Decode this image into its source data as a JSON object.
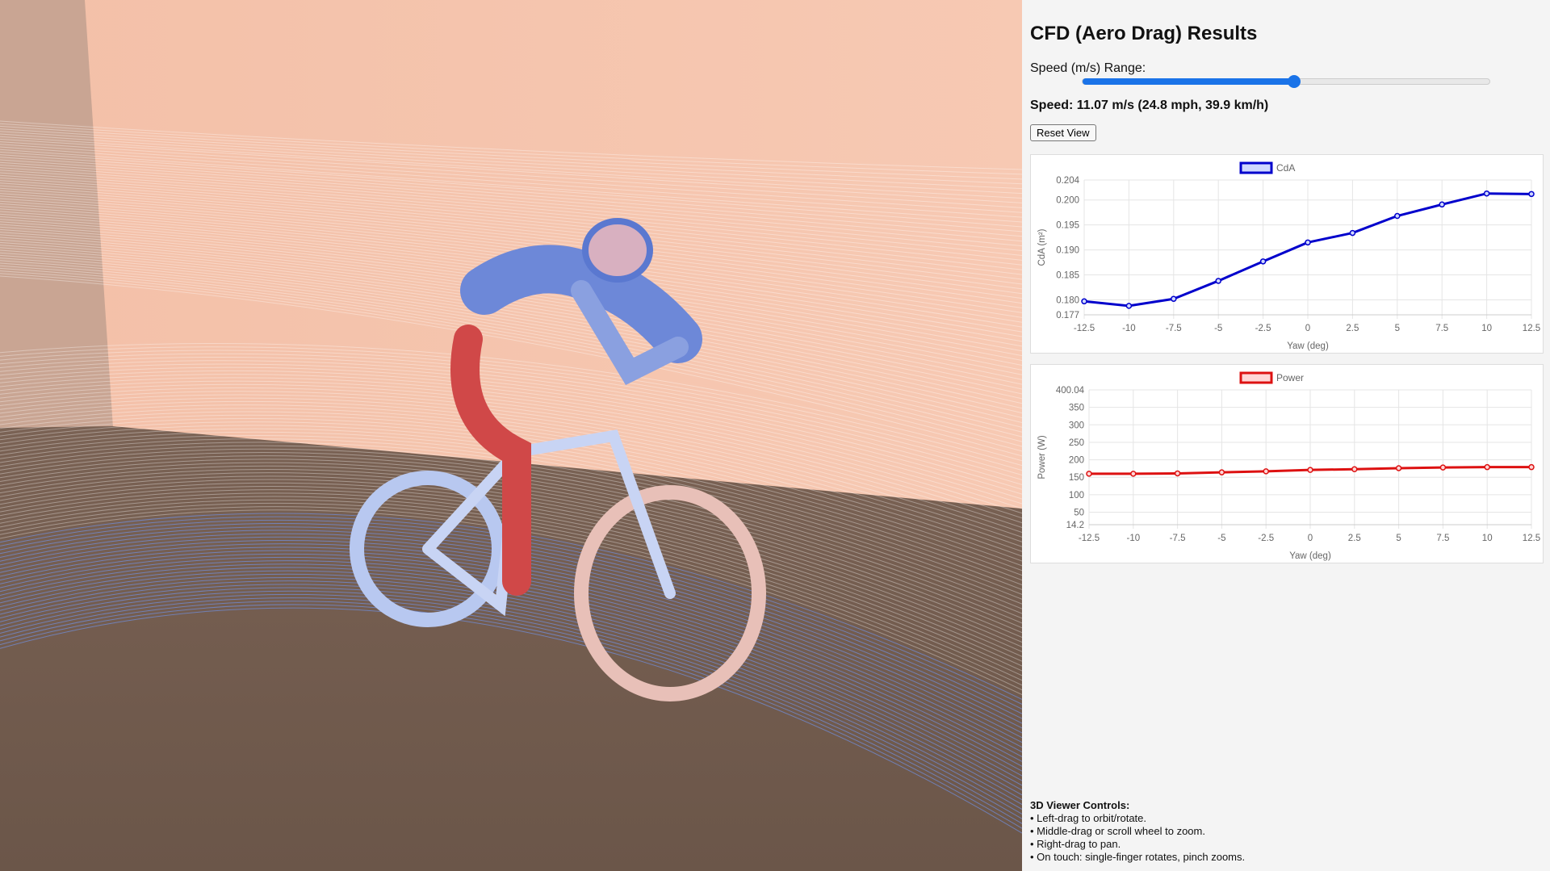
{
  "panel": {
    "title": "CFD (Aero Drag) Results",
    "slider_label": "Speed (m/s) Range:",
    "slider_value_fraction": 0.52,
    "speed_text": "Speed: 11.07 m/s (24.8 mph, 39.9 km/h)",
    "reset_label": "Reset View",
    "controls_title": "3D Viewer Controls:",
    "controls": [
      "• Left-drag to orbit/rotate.",
      "• Middle-drag or scroll wheel to zoom.",
      "• Right-drag to pan.",
      "• On touch: single-finger rotates, pinch zooms."
    ]
  },
  "chart_data": [
    {
      "type": "line",
      "legend": "CdA",
      "color": "#0000cc",
      "fill": "#cfd8ff",
      "xlabel": "Yaw (deg)",
      "ylabel": "CdA (m²)",
      "categories": [
        "-12.5",
        "-10",
        "-7.5",
        "-5",
        "-2.5",
        "0",
        "2.5",
        "5",
        "7.5",
        "10",
        "12.5"
      ],
      "values": [
        0.1797,
        0.1788,
        0.1802,
        0.1838,
        0.1877,
        0.1915,
        0.1934,
        0.1968,
        0.1991,
        0.2013,
        0.2012
      ],
      "ylim": [
        0.177,
        0.204
      ],
      "yticks": [
        "0.177",
        "0.180",
        "0.185",
        "0.190",
        "0.195",
        "0.200",
        "0.204"
      ],
      "ytick_values": [
        0.177,
        0.18,
        0.185,
        0.19,
        0.195,
        0.2,
        0.204
      ],
      "grid": true,
      "legend_position": "top"
    },
    {
      "type": "line",
      "legend": "Power",
      "color": "#dd1111",
      "fill": "#ffd6d6",
      "xlabel": "Yaw (deg)",
      "ylabel": "Power (W)",
      "categories": [
        "-12.5",
        "-10",
        "-7.5",
        "-5",
        "-2.5",
        "0",
        "2.5",
        "5",
        "7.5",
        "10",
        "12.5"
      ],
      "values": [
        160,
        160,
        161,
        164,
        167,
        171,
        173,
        176,
        178,
        179,
        179
      ],
      "ylim": [
        14.2,
        400.04
      ],
      "yticks": [
        "14.2",
        "50",
        "100",
        "150",
        "200",
        "250",
        "300",
        "350",
        "400.04"
      ],
      "ytick_values": [
        14.2,
        50,
        100,
        150,
        200,
        250,
        300,
        350,
        400.04
      ],
      "grid": true,
      "legend_position": "top"
    }
  ]
}
